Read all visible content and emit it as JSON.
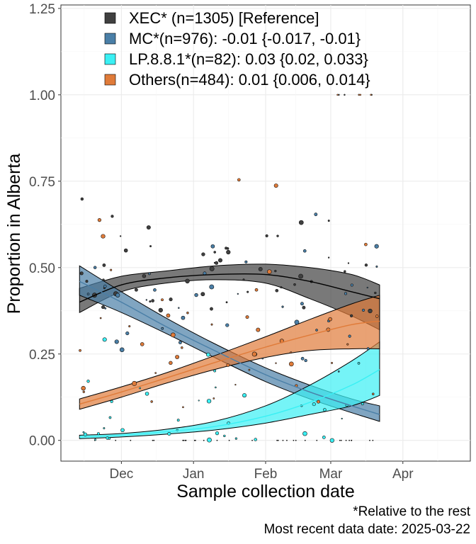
{
  "chart_data": {
    "type": "line",
    "title": "",
    "xlabel": "Sample collection date",
    "ylabel": "Proportion in Alberta",
    "x_ticks": [
      "Dec",
      "Jan",
      "Feb",
      "Mar",
      "Apr"
    ],
    "y_ticks": [
      "0.00",
      "0.25",
      "0.50",
      "0.75",
      "1.00",
      "1.25"
    ],
    "ylim": [
      -0.06,
      1.26
    ],
    "xlim": [
      "2024-11-05",
      "2025-04-30"
    ],
    "grid": true,
    "legend_position": "top-left",
    "series": [
      {
        "name": "XEC* (n=1305)  [Reference]",
        "color": "#404040",
        "x": [
          "2024-11-13",
          "2024-12-01",
          "2024-12-20",
          "2025-01-10",
          "2025-02-01",
          "2025-02-20",
          "2025-03-10",
          "2025-03-22"
        ],
        "fit": [
          0.4,
          0.45,
          0.47,
          0.48,
          0.48,
          0.46,
          0.43,
          0.41
        ],
        "lower": [
          0.37,
          0.43,
          0.455,
          0.465,
          0.455,
          0.41,
          0.36,
          0.32
        ],
        "upper": [
          0.44,
          0.475,
          0.49,
          0.505,
          0.51,
          0.5,
          0.48,
          0.45
        ],
        "points": [
          [
            0.39,
            0.4,
            0.42,
            0.43,
            0.46,
            0.5,
            0.54,
            0.56
          ],
          [
            0.38,
            0.48,
            0.51,
            0.55,
            0.58,
            0.62,
            0.68,
            0.69,
            0.45,
            0.35
          ]
        ]
      },
      {
        "name": "MC*(n=976): -0.01 {-0.017, -0.01}",
        "color": "#4a7fa7",
        "x": [
          "2024-11-13",
          "2024-12-01",
          "2024-12-20",
          "2025-01-10",
          "2025-02-01",
          "2025-02-20",
          "2025-03-10",
          "2025-03-22"
        ],
        "fit": [
          0.46,
          0.4,
          0.33,
          0.26,
          0.19,
          0.14,
          0.1,
          0.075
        ],
        "lower": [
          0.42,
          0.37,
          0.31,
          0.24,
          0.17,
          0.12,
          0.08,
          0.055
        ],
        "upper": [
          0.505,
          0.43,
          0.355,
          0.28,
          0.21,
          0.16,
          0.12,
          0.1
        ],
        "points": [
          [
            0.59,
            0.53,
            0.52,
            0.5,
            0.48,
            0.46,
            0.45,
            0.42,
            0.38,
            0.36,
            0.32,
            0.28,
            0.25,
            0.22
          ]
        ]
      },
      {
        "name": "LP.8.8.1*(n=82): 0.03 {0.02, 0.033}",
        "color": "#3af0f4",
        "x": [
          "2024-11-13",
          "2024-12-01",
          "2024-12-20",
          "2025-01-10",
          "2025-02-01",
          "2025-02-20",
          "2025-03-10",
          "2025-03-22"
        ],
        "fit": [
          0.01,
          0.015,
          0.025,
          0.04,
          0.07,
          0.11,
          0.16,
          0.205
        ],
        "lower": [
          0.005,
          0.01,
          0.018,
          0.03,
          0.05,
          0.075,
          0.1,
          0.13
        ],
        "upper": [
          0.015,
          0.02,
          0.032,
          0.055,
          0.1,
          0.16,
          0.23,
          0.285
        ],
        "points": [
          [
            0.0,
            0.0,
            0.0,
            0.01,
            0.02,
            0.03,
            0.05,
            0.08,
            0.1,
            0.13,
            0.15,
            0.2,
            0.25
          ]
        ]
      },
      {
        "name": "Others(n=484): 0.01 {0.006, 0.014}",
        "color": "#e07b39",
        "x": [
          "2024-11-13",
          "2024-12-01",
          "2024-12-20",
          "2025-01-10",
          "2025-02-01",
          "2025-02-20",
          "2025-03-10",
          "2025-03-22"
        ],
        "fit": [
          0.105,
          0.14,
          0.18,
          0.225,
          0.27,
          0.305,
          0.335,
          0.345
        ],
        "lower": [
          0.09,
          0.125,
          0.165,
          0.205,
          0.24,
          0.26,
          0.265,
          0.265
        ],
        "upper": [
          0.12,
          0.155,
          0.195,
          0.245,
          0.3,
          0.35,
          0.395,
          0.42
        ],
        "points": [
          [
            0.09,
            0.12,
            0.15,
            0.17,
            0.2,
            0.22,
            0.25,
            0.29,
            0.32,
            0.35,
            0.37,
            0.45,
            0.5,
            0.63,
            1.0
          ]
        ]
      }
    ]
  },
  "caption": {
    "line1": "*Relative to the rest",
    "line2": "Most recent data date: 2025-03-22"
  }
}
